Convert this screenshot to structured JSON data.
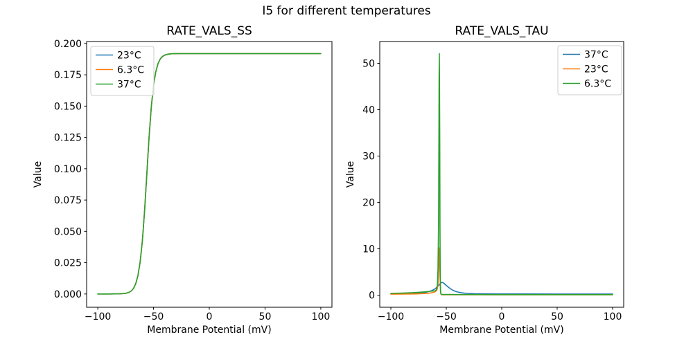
{
  "figure": {
    "suptitle": "I5 for different temperatures",
    "background": "#ffffff"
  },
  "colors": {
    "blue": "#1f77b4",
    "orange": "#ff7f0e",
    "green": "#2ca02c",
    "spine": "#000000",
    "legend_border": "#cccccc",
    "text": "#000000"
  },
  "chart_data": [
    {
      "type": "line",
      "title": "RATE_VALS_SS",
      "xlabel": "Membrane Potential (mV)",
      "ylabel": "Value",
      "xlim": [
        -110,
        110
      ],
      "ylim": [
        -0.0106,
        0.2016
      ],
      "grid": false,
      "legend_loc": "upper left",
      "xticks": {
        "values": [
          -100,
          -50,
          0,
          50,
          100
        ],
        "labels": [
          "−100",
          "−50",
          "0",
          "50",
          "100"
        ]
      },
      "yticks": {
        "values": [
          0,
          0.025,
          0.05,
          0.075,
          0.1,
          0.125,
          0.15,
          0.175,
          0.2
        ],
        "labels": [
          "0.000",
          "0.025",
          "0.050",
          "0.075",
          "0.100",
          "0.125",
          "0.150",
          "0.175",
          "0.200"
        ]
      },
      "shared_points": [
        [
          -100,
          0.0
        ],
        [
          -90,
          0.0
        ],
        [
          -80,
          0.0001
        ],
        [
          -75,
          0.0005
        ],
        [
          -72,
          0.0013
        ],
        [
          -70,
          0.0024
        ],
        [
          -68,
          0.0044
        ],
        [
          -66,
          0.0081
        ],
        [
          -64,
          0.0146
        ],
        [
          -62,
          0.0255
        ],
        [
          -60,
          0.0428
        ],
        [
          -58,
          0.0669
        ],
        [
          -56,
          0.096
        ],
        [
          -54,
          0.1251
        ],
        [
          -52,
          0.1492
        ],
        [
          -50,
          0.1665
        ],
        [
          -48,
          0.1774
        ],
        [
          -46,
          0.1839
        ],
        [
          -44,
          0.1876
        ],
        [
          -42,
          0.1896
        ],
        [
          -40,
          0.1907
        ],
        [
          -37,
          0.1915
        ],
        [
          -34,
          0.1918
        ],
        [
          -30,
          0.1919
        ],
        [
          -25,
          0.192
        ],
        [
          -20,
          0.192
        ],
        [
          -10,
          0.192
        ],
        [
          0,
          0.192
        ],
        [
          25,
          0.192
        ],
        [
          50,
          0.192
        ],
        [
          75,
          0.192
        ],
        [
          100,
          0.192
        ]
      ],
      "series": [
        {
          "name": "23°C",
          "color": "#1f77b4",
          "points": "shared"
        },
        {
          "name": "6.3°C",
          "color": "#ff7f0e",
          "points": "shared"
        },
        {
          "name": "37°C",
          "color": "#2ca02c",
          "points": "shared"
        }
      ]
    },
    {
      "type": "line",
      "title": "RATE_VALS_TAU",
      "xlabel": "Membrane Potential (mV)",
      "ylabel": "Value",
      "xlim": [
        -110,
        110
      ],
      "ylim": [
        -2.6,
        54.7
      ],
      "grid": false,
      "legend_loc": "upper right",
      "xticks": {
        "values": [
          -100,
          -50,
          0,
          50,
          100
        ],
        "labels": [
          "−100",
          "−50",
          "0",
          "50",
          "100"
        ]
      },
      "yticks": {
        "values": [
          0,
          10,
          20,
          30,
          40,
          50
        ],
        "labels": [
          "0",
          "10",
          "20",
          "30",
          "40",
          "50"
        ]
      },
      "series": [
        {
          "name": "37°C",
          "color": "#1f77b4",
          "points": [
            [
              -100,
              0.3
            ],
            [
              -90,
              0.31
            ],
            [
              -85,
              0.33
            ],
            [
              -80,
              0.36
            ],
            [
              -75,
              0.42
            ],
            [
              -70,
              0.55
            ],
            [
              -66,
              0.75
            ],
            [
              -63,
              1.0
            ],
            [
              -60,
              1.4
            ],
            [
              -58,
              1.8
            ],
            [
              -56,
              2.35
            ],
            [
              -55,
              2.6
            ],
            [
              -54,
              2.75
            ],
            [
              -53,
              2.7
            ],
            [
              -52,
              2.55
            ],
            [
              -50,
              2.1
            ],
            [
              -48,
              1.7
            ],
            [
              -46,
              1.35
            ],
            [
              -44,
              1.05
            ],
            [
              -42,
              0.85
            ],
            [
              -40,
              0.7
            ],
            [
              -37,
              0.55
            ],
            [
              -34,
              0.45
            ],
            [
              -30,
              0.38
            ],
            [
              -25,
              0.33
            ],
            [
              -20,
              0.3
            ],
            [
              -10,
              0.28
            ],
            [
              0,
              0.27
            ],
            [
              20,
              0.26
            ],
            [
              50,
              0.25
            ],
            [
              100,
              0.25
            ]
          ]
        },
        {
          "name": "23°C",
          "color": "#ff7f0e",
          "points": [
            [
              -100,
              0.22
            ],
            [
              -90,
              0.24
            ],
            [
              -80,
              0.27
            ],
            [
              -75,
              0.3
            ],
            [
              -70,
              0.35
            ],
            [
              -66,
              0.42
            ],
            [
              -63,
              0.52
            ],
            [
              -61,
              0.65
            ],
            [
              -60,
              0.75
            ],
            [
              -59,
              0.95
            ],
            [
              -58.5,
              1.15
            ],
            [
              -58,
              1.5
            ],
            [
              -57.5,
              2.3
            ],
            [
              -57,
              4.2
            ],
            [
              -56.6,
              7.5
            ],
            [
              -56.3,
              10.2
            ],
            [
              -56,
              9.0
            ],
            [
              -55.7,
              5.5
            ],
            [
              -55.4,
              2.2
            ],
            [
              -55.1,
              0.8
            ],
            [
              -54.8,
              0.3
            ],
            [
              -54.5,
              0.15
            ],
            [
              -54,
              0.1
            ],
            [
              -52,
              0.09
            ],
            [
              -50,
              0.09
            ],
            [
              -45,
              0.08
            ],
            [
              -40,
              0.08
            ],
            [
              -30,
              0.08
            ],
            [
              -20,
              0.08
            ],
            [
              -10,
              0.08
            ],
            [
              0,
              0.08
            ],
            [
              25,
              0.08
            ],
            [
              50,
              0.08
            ],
            [
              75,
              0.08
            ],
            [
              100,
              0.08
            ]
          ]
        },
        {
          "name": "6.3°C",
          "color": "#2ca02c",
          "points": [
            [
              -100,
              0.4
            ],
            [
              -90,
              0.46
            ],
            [
              -80,
              0.55
            ],
            [
              -75,
              0.62
            ],
            [
              -70,
              0.72
            ],
            [
              -66,
              0.8
            ],
            [
              -63,
              0.87
            ],
            [
              -61,
              0.92
            ],
            [
              -60,
              0.97
            ],
            [
              -59,
              1.15
            ],
            [
              -58.5,
              1.5
            ],
            [
              -58,
              2.4
            ],
            [
              -57.5,
              5.5
            ],
            [
              -57,
              15
            ],
            [
              -56.7,
              32
            ],
            [
              -56.5,
              46
            ],
            [
              -56.3,
              52.1
            ],
            [
              -56.1,
              47
            ],
            [
              -55.9,
              33
            ],
            [
              -55.7,
              15
            ],
            [
              -55.5,
              5.5
            ],
            [
              -55.3,
              1.8
            ],
            [
              -55.1,
              0.6
            ],
            [
              -54.8,
              0.25
            ],
            [
              -54.5,
              0.17
            ],
            [
              -54,
              0.15
            ],
            [
              -52,
              0.15
            ],
            [
              -50,
              0.14
            ],
            [
              -45,
              0.14
            ],
            [
              -40,
              0.13
            ],
            [
              -30,
              0.13
            ],
            [
              -20,
              0.13
            ],
            [
              -10,
              0.12
            ],
            [
              0,
              0.12
            ],
            [
              25,
              0.12
            ],
            [
              50,
              0.12
            ],
            [
              75,
              0.12
            ],
            [
              100,
              0.12
            ]
          ]
        }
      ]
    }
  ]
}
